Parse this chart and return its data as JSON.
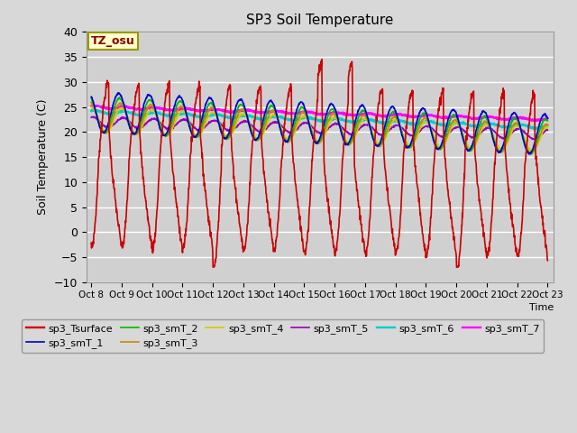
{
  "title": "SP3 Soil Temperature",
  "ylabel": "Soil Temperature (C)",
  "xlabel": "Time",
  "tz_label": "TZ_osu",
  "ylim": [
    -10,
    40
  ],
  "num_days": 15,
  "x_tick_labels": [
    "Oct 8",
    "Oct 9",
    "Oct 10",
    "Oct 11",
    "Oct 12",
    "Oct 13",
    "Oct 14",
    "Oct 15",
    "Oct 16",
    "Oct 17",
    "Oct 18",
    "Oct 19",
    "Oct 20",
    "Oct 21",
    "Oct 22",
    "Oct 23"
  ],
  "series_colors": {
    "sp3_Tsurface": "#cc0000",
    "sp3_smT_1": "#0000cc",
    "sp3_smT_2": "#00bb00",
    "sp3_smT_3": "#cc8800",
    "sp3_smT_4": "#cccc00",
    "sp3_smT_5": "#9900bb",
    "sp3_smT_6": "#00cccc",
    "sp3_smT_7": "#ff00ff"
  },
  "fig_facecolor": "#d8d8d8",
  "axes_facecolor": "#d0d0d0",
  "grid_color": "#ffffff"
}
